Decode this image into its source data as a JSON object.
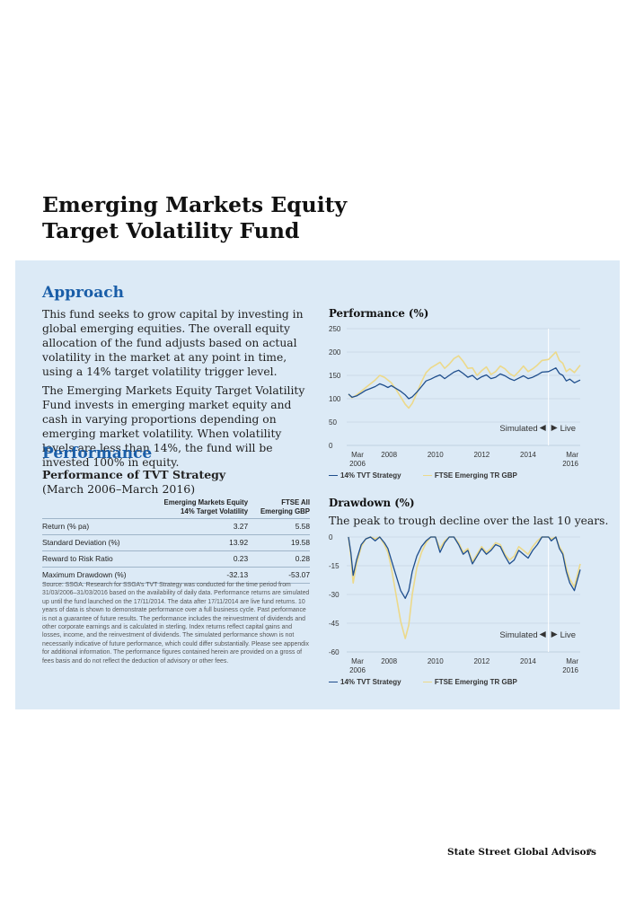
{
  "title_line1": "Emerging Markets Equity",
  "title_line2": "Target Volatility Fund",
  "approach": {
    "heading": "Approach",
    "para1": "This fund seeks to grow capital by investing in global emerging equities. The overall equity allocation of the fund adjusts based on actual volatility in the market at any point in time, using a 14% target volatility trigger level.",
    "para2": "The Emerging Markets Equity Target Volatility Fund invests in emerging market equity and cash in varying proportions depending on emerging market volatility. When volatility levels are less than 14%, the fund will be invested 100% in equity."
  },
  "performance": {
    "heading": "Performance",
    "sub_title": "Performance of TVT Strategy",
    "sub_period": "(March 2006–March 2016)",
    "table": {
      "col1_line1": "Emerging Markets Equity",
      "col1_line2": "14% Target Volatility",
      "col2_line1": "FTSE All",
      "col2_line2": "Emerging GBP",
      "rows": [
        {
          "label": "Return (% pa)",
          "v1": "3.27",
          "v2": "5.58"
        },
        {
          "label": "Standard Deviation (%)",
          "v1": "13.92",
          "v2": "19.58"
        },
        {
          "label": "Reward to Risk Ratio",
          "v1": "0.23",
          "v2": "0.28"
        },
        {
          "label": "Maximum Drawdown (%)",
          "v1": "-32.13",
          "v2": "-53.07"
        }
      ]
    },
    "source": "Source: SSGA. Research for SSGA’s TVT Strategy was conducted for the time period from 31/03/2006–31/03/2016 based on the availability of daily data. Performance returns are simulated up until the fund launched on the 17/11/2014. The data after 17/11/2014 are live fund returns. 10 years of data is shown to demonstrate performance over a full business cycle. Past performance is not a guarantee of future results. The performance includes the reinvestment of dividends and other corporate earnings and is calculated in sterling. Index returns reflect capital gains and losses, income, and the reinvestment of dividends. The simulated performance shown is not necessarily indicative of future performance, which could differ substantially. Please see appendix for additional information. The performance figures contained herein are provided on a gross of fees basis and do not reflect the deduction of advisory or other fees."
  },
  "footer": {
    "brand": "State Street Global Advisors",
    "page": "7"
  },
  "colors": {
    "tvt": "#1f4e8c",
    "ftse": "#ecd98a",
    "accent": "#1a5ea8",
    "panel": "#dceaf6"
  },
  "chart_data": [
    {
      "type": "line",
      "title": "Performance (%)",
      "ylim": [
        0,
        250
      ],
      "yticks": [
        "250",
        "200",
        "150",
        "100",
        "50",
        "0"
      ],
      "xticks": [
        {
          "l1": "Mar",
          "l2": "2006"
        },
        {
          "l1": "2008",
          "l2": ""
        },
        {
          "l1": "2010",
          "l2": ""
        },
        {
          "l1": "2012",
          "l2": ""
        },
        {
          "l1": "2014",
          "l2": ""
        },
        {
          "l1": "Mar",
          "l2": "2016"
        }
      ],
      "annotation_left": "Simulated",
      "annotation_right": "Live",
      "live_start": 2014.88,
      "series": [
        {
          "name": "14% TVT Strategy",
          "color": "#1f4e8c",
          "x": [
            2006.25,
            2006.4,
            2006.6,
            2006.8,
            2007.0,
            2007.2,
            2007.4,
            2007.6,
            2007.8,
            2007.95,
            2008.1,
            2008.3,
            2008.5,
            2008.7,
            2008.85,
            2009.0,
            2009.2,
            2009.4,
            2009.6,
            2009.8,
            2010.0,
            2010.2,
            2010.4,
            2010.6,
            2010.8,
            2011.0,
            2011.2,
            2011.4,
            2011.6,
            2011.8,
            2012.0,
            2012.2,
            2012.4,
            2012.6,
            2012.8,
            2013.0,
            2013.2,
            2013.4,
            2013.6,
            2013.8,
            2014.0,
            2014.2,
            2014.4,
            2014.6,
            2014.88,
            2015.0,
            2015.2,
            2015.35,
            2015.5,
            2015.65,
            2015.8,
            2016.0,
            2016.25
          ],
          "y": [
            110,
            103,
            106,
            112,
            118,
            122,
            126,
            132,
            128,
            124,
            128,
            122,
            116,
            108,
            100,
            104,
            114,
            126,
            138,
            142,
            147,
            151,
            143,
            150,
            157,
            161,
            154,
            146,
            150,
            141,
            147,
            151,
            143,
            146,
            153,
            149,
            143,
            139,
            144,
            149,
            143,
            146,
            151,
            157,
            158,
            161,
            166,
            154,
            150,
            138,
            142,
            134,
            140
          ]
        },
        {
          "name": "FTSE Emerging TR GBP",
          "color": "#ecd98a",
          "x": [
            2006.25,
            2006.4,
            2006.6,
            2006.8,
            2007.0,
            2007.2,
            2007.4,
            2007.6,
            2007.8,
            2007.95,
            2008.1,
            2008.3,
            2008.5,
            2008.7,
            2008.85,
            2009.0,
            2009.2,
            2009.4,
            2009.6,
            2009.8,
            2010.0,
            2010.2,
            2010.4,
            2010.6,
            2010.8,
            2011.0,
            2011.2,
            2011.4,
            2011.6,
            2011.8,
            2012.0,
            2012.2,
            2012.4,
            2012.6,
            2012.8,
            2013.0,
            2013.2,
            2013.4,
            2013.6,
            2013.8,
            2014.0,
            2014.2,
            2014.4,
            2014.6,
            2014.88,
            2015.0,
            2015.2,
            2015.35,
            2015.5,
            2015.65,
            2015.8,
            2016.0,
            2016.25
          ],
          "y": [
            110,
            102,
            108,
            116,
            124,
            132,
            140,
            150,
            146,
            140,
            134,
            120,
            104,
            88,
            80,
            90,
            112,
            136,
            156,
            166,
            172,
            178,
            165,
            174,
            186,
            192,
            180,
            165,
            166,
            150,
            160,
            168,
            152,
            158,
            170,
            164,
            154,
            148,
            158,
            170,
            158,
            164,
            172,
            182,
            184,
            190,
            200,
            182,
            176,
            158,
            164,
            156,
            172
          ]
        }
      ]
    },
    {
      "type": "line",
      "title": "Drawdown (%)",
      "subtitle": "The peak to trough decline over the last 10 years.",
      "ylim": [
        -60,
        0
      ],
      "yticks": [
        "0",
        "-15",
        "-30",
        "-45",
        "-60"
      ],
      "xticks": [
        {
          "l1": "Mar",
          "l2": "2006"
        },
        {
          "l1": "2008",
          "l2": ""
        },
        {
          "l1": "2010",
          "l2": ""
        },
        {
          "l1": "2012",
          "l2": ""
        },
        {
          "l1": "2014",
          "l2": ""
        },
        {
          "l1": "Mar",
          "l2": "2016"
        }
      ],
      "annotation_left": "Simulated",
      "annotation_right": "Live",
      "live_start": 2014.88,
      "series": [
        {
          "name": "14% TVT Strategy",
          "color": "#1f4e8c",
          "x": [
            2006.25,
            2006.35,
            2006.45,
            2006.6,
            2006.8,
            2007.0,
            2007.2,
            2007.4,
            2007.6,
            2007.8,
            2007.95,
            2008.1,
            2008.3,
            2008.5,
            2008.7,
            2008.85,
            2009.0,
            2009.2,
            2009.4,
            2009.6,
            2009.8,
            2010.0,
            2010.2,
            2010.4,
            2010.6,
            2010.8,
            2011.0,
            2011.2,
            2011.4,
            2011.6,
            2011.8,
            2012.0,
            2012.2,
            2012.4,
            2012.6,
            2012.8,
            2013.0,
            2013.2,
            2013.4,
            2013.6,
            2013.8,
            2014.0,
            2014.2,
            2014.4,
            2014.6,
            2014.88,
            2015.0,
            2015.2,
            2015.35,
            2015.5,
            2015.65,
            2015.8,
            2016.0,
            2016.25
          ],
          "y": [
            0,
            -8,
            -20,
            -12,
            -4,
            -1,
            0,
            -2,
            0,
            -3,
            -6,
            -12,
            -20,
            -28,
            -32,
            -28,
            -18,
            -10,
            -5,
            -2,
            0,
            0,
            -8,
            -3,
            0,
            0,
            -4,
            -9,
            -7,
            -14,
            -10,
            -6,
            -9,
            -7,
            -4,
            -5,
            -10,
            -14,
            -12,
            -7,
            -9,
            -11,
            -7,
            -4,
            0,
            0,
            -2,
            0,
            -6,
            -9,
            -18,
            -24,
            -28,
            -17
          ]
        },
        {
          "name": "FTSE Emerging TR GBP",
          "color": "#ecd98a",
          "x": [
            2006.25,
            2006.35,
            2006.45,
            2006.6,
            2006.8,
            2007.0,
            2007.2,
            2007.4,
            2007.6,
            2007.8,
            2007.95,
            2008.1,
            2008.3,
            2008.5,
            2008.7,
            2008.85,
            2009.0,
            2009.2,
            2009.4,
            2009.6,
            2009.8,
            2010.0,
            2010.2,
            2010.4,
            2010.6,
            2010.8,
            2011.0,
            2011.2,
            2011.4,
            2011.6,
            2011.8,
            2012.0,
            2012.2,
            2012.4,
            2012.6,
            2012.8,
            2013.0,
            2013.2,
            2013.4,
            2013.6,
            2013.8,
            2014.0,
            2014.2,
            2014.4,
            2014.6,
            2014.88,
            2015.0,
            2015.2,
            2015.35,
            2015.5,
            2015.65,
            2015.8,
            2016.0,
            2016.25
          ],
          "y": [
            0,
            -10,
            -24,
            -14,
            -5,
            -1,
            0,
            -1,
            0,
            -4,
            -8,
            -16,
            -30,
            -44,
            -53,
            -46,
            -30,
            -16,
            -8,
            -3,
            0,
            0,
            -6,
            -2,
            0,
            0,
            -3,
            -8,
            -6,
            -13,
            -9,
            -5,
            -8,
            -6,
            -3,
            -4,
            -9,
            -12,
            -10,
            -5,
            -7,
            -9,
            -5,
            -2,
            0,
            0,
            -1,
            0,
            -5,
            -8,
            -16,
            -22,
            -26,
            -14
          ]
        }
      ]
    }
  ]
}
